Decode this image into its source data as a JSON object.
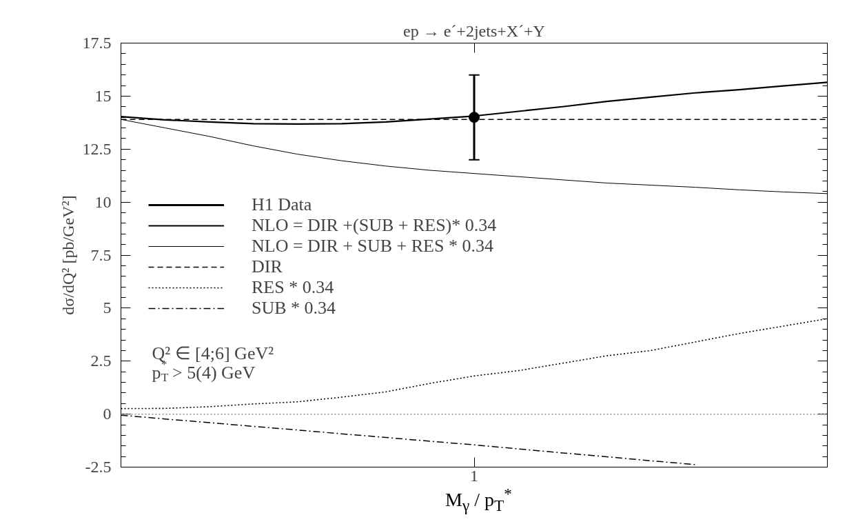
{
  "chart_data": {
    "type": "line",
    "title": "ep → e´+2jets+X´+Y",
    "xlabel": "M$_{γ}$ / p$_{T}$$^{*}$",
    "ylabel": "dσ/dQ² [pb/GeV²]",
    "categories": [
      null,
      null,
      null,
      null,
      null,
      null,
      null,
      null,
      "1",
      null,
      null,
      null,
      null,
      null,
      null,
      null,
      null
    ],
    "ylim": [
      -2.5,
      17.5
    ],
    "yticks": [
      -2.5,
      {
        "value": -2,
        "label": null
      },
      {
        "value": -1.5,
        "label": null
      },
      {
        "value": -1,
        "label": null
      },
      {
        "value": -0.5,
        "label": null
      },
      0,
      {
        "value": 0.5,
        "label": null
      },
      {
        "value": 1,
        "label": null
      },
      {
        "value": 1.5,
        "label": null
      },
      {
        "value": 2,
        "label": null
      },
      2.5,
      {
        "value": 3,
        "label": null
      },
      {
        "value": 3.5,
        "label": null
      },
      {
        "value": 4,
        "label": null
      },
      {
        "value": 4.5,
        "label": null
      },
      5,
      {
        "value": 5.5,
        "label": null
      },
      {
        "value": 6,
        "label": null
      },
      {
        "value": 6.5,
        "label": null
      },
      {
        "value": 7,
        "label": null
      },
      7.5,
      {
        "value": 8,
        "label": null
      },
      {
        "value": 8.5,
        "label": null
      },
      {
        "value": 9,
        "label": null
      },
      {
        "value": 9.5,
        "label": null
      },
      10,
      {
        "value": 10.5,
        "label": null
      },
      {
        "value": 11,
        "label": null
      },
      {
        "value": 11.5,
        "label": null
      },
      {
        "value": 12,
        "label": null
      },
      12.5,
      {
        "value": 13,
        "label": null
      },
      {
        "value": 13.5,
        "label": null
      },
      {
        "value": 14,
        "label": null
      },
      {
        "value": 14.5,
        "label": null
      },
      15,
      {
        "value": 15.5,
        "label": null
      },
      {
        "value": 16,
        "label": null
      },
      {
        "value": 16.5,
        "label": null
      },
      {
        "value": 17,
        "label": null
      },
      17.5
    ],
    "grid": false,
    "legend": "left",
    "ref_lines": [
      {
        "axis": "y",
        "value": 0,
        "label": null,
        "color": "#888888",
        "line_style": "dotted"
      }
    ],
    "annotations": [
      "Q² ∈ [4;6] GeV²",
      "p$_{T}$$^{*}$ > 5(4) GeV"
    ],
    "series": [
      {
        "name": "H1 Data",
        "type": "scatter",
        "marker": "circle",
        "color": "#000000",
        "x": [
          "1"
        ],
        "values": [
          14
        ],
        "errors": [
          2
        ]
      },
      {
        "name": "NLO = DIR +(SUB + RES)* 0.34",
        "line_style": "solid",
        "color": "#000000",
        "values": [
          14.03,
          13.88,
          13.78,
          13.7,
          13.68,
          13.7,
          13.78,
          13.92,
          14.06,
          14.28,
          14.5,
          14.75,
          14.95,
          15.15,
          15.3,
          15.48,
          15.65
        ]
      },
      {
        "name": "NLO = DIR + SUB + RES * 0.34",
        "line_style": "solid",
        "color": "#000000",
        "values": [
          13.9,
          13.5,
          13.1,
          12.65,
          12.26,
          11.95,
          11.7,
          11.5,
          11.35,
          11.2,
          11.05,
          10.9,
          10.8,
          10.7,
          10.58,
          10.48,
          10.4
        ]
      },
      {
        "name": "DIR",
        "line_style": "dashed",
        "color": "#000000",
        "values": [
          13.9,
          13.9,
          13.9,
          13.9,
          13.9,
          13.9,
          13.9,
          13.9,
          13.9,
          13.9,
          13.9,
          13.9,
          13.9,
          13.9,
          13.9,
          13.9,
          13.9
        ]
      },
      {
        "name": "RES * 0.34",
        "line_style": "dotted",
        "color": "#000000",
        "values": [
          0.26,
          0.27,
          0.35,
          0.48,
          0.58,
          0.8,
          1.05,
          1.45,
          1.8,
          2.05,
          2.4,
          2.75,
          3.0,
          3.4,
          3.8,
          4.15,
          4.5
        ]
      },
      {
        "name": "SUB * 0.34",
        "line_style": "dashdot",
        "color": "#000000",
        "values": [
          -0.05,
          -0.23,
          -0.4,
          -0.58,
          -0.75,
          -0.93,
          -1.1,
          -1.28,
          -1.45,
          -1.64,
          -1.83,
          -2.01,
          -2.2,
          -2.38,
          null,
          null,
          null
        ]
      }
    ]
  }
}
